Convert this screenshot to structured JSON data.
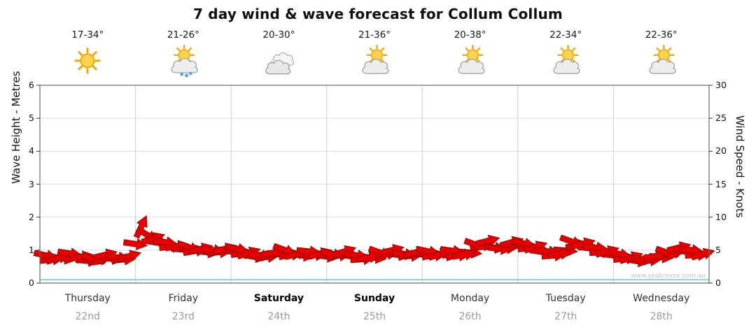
{
  "title": "7 day wind & wave forecast for Collum Collum",
  "watermark": "www.seabreeze.com.au",
  "left_axis": {
    "label": "Wave Height - Metres",
    "min": 0,
    "max": 6,
    "step": 1
  },
  "right_axis": {
    "label": "Wind Speed - Knots",
    "min": 0,
    "max": 30,
    "step": 5
  },
  "days": [
    {
      "name": "Thursday",
      "date": "22nd",
      "temp": "17-34°",
      "icon": "sunny",
      "bold": false
    },
    {
      "name": "Friday",
      "date": "23rd",
      "temp": "21-26°",
      "icon": "showers",
      "bold": false
    },
    {
      "name": "Saturday",
      "date": "24th",
      "temp": "20-30°",
      "icon": "cloudy",
      "bold": true
    },
    {
      "name": "Sunday",
      "date": "25th",
      "temp": "21-36°",
      "icon": "partly",
      "bold": true
    },
    {
      "name": "Monday",
      "date": "26th",
      "temp": "20-38°",
      "icon": "partly",
      "bold": false
    },
    {
      "name": "Tuesday",
      "date": "27th",
      "temp": "22-34°",
      "icon": "partly",
      "bold": false
    },
    {
      "name": "Wednesday",
      "date": "28th",
      "temp": "22-36°",
      "icon": "partly",
      "bold": false
    }
  ],
  "chart_data": {
    "type": "wind-arrows",
    "points_per_day": 8,
    "wind_knots": [
      4.2,
      3.8,
      4.5,
      4.0,
      3.6,
      4.3,
      3.9,
      4.1,
      8.6,
      6.8,
      6.2,
      5.6,
      5.4,
      5.2,
      5.0,
      5.2,
      5.2,
      4.6,
      4.2,
      4.6,
      5.0,
      4.4,
      4.8,
      4.5,
      4.4,
      4.8,
      4.2,
      3.9,
      4.6,
      5.0,
      4.4,
      4.7,
      4.8,
      4.4,
      4.9,
      4.3,
      5.8,
      6.4,
      5.2,
      6.2,
      6.0,
      5.5,
      4.8,
      4.4,
      6.3,
      6.0,
      5.4,
      4.8,
      4.4,
      3.9,
      3.6,
      4.1,
      4.6,
      5.4,
      5.0,
      4.4
    ],
    "wind_dir_deg": [
      12,
      -18,
      8,
      -10,
      20,
      -14,
      6,
      -16,
      -65,
      -18,
      8,
      -10,
      20,
      -14,
      6,
      -16,
      12,
      -18,
      8,
      -10,
      20,
      -14,
      6,
      -16,
      12,
      -18,
      8,
      -10,
      20,
      -14,
      6,
      -16,
      12,
      -18,
      8,
      -10,
      20,
      -14,
      6,
      -16,
      12,
      -18,
      8,
      -10,
      20,
      -14,
      6,
      -16,
      12,
      -18,
      8,
      -10,
      20,
      -14,
      6,
      -16
    ],
    "wave_height_m": 0.1,
    "colors": {
      "arrow": "#e60000",
      "arrow_stroke": "#7d0000",
      "wave": "#7ccfcf",
      "grid": "#dcdcdc",
      "day_grid": "#d0d0d0",
      "border": "#6a6a6a"
    }
  }
}
